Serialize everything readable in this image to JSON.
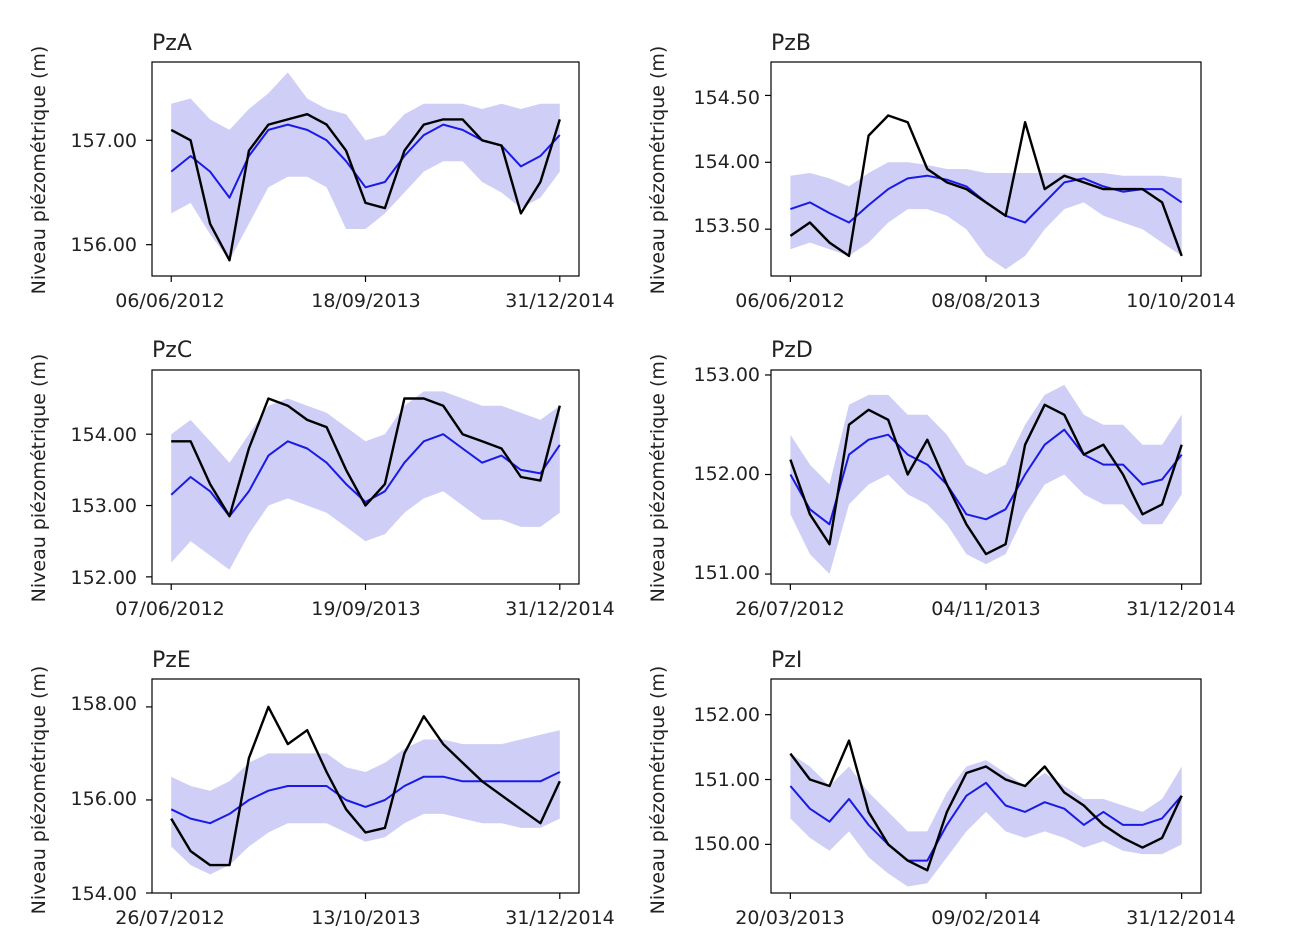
{
  "chart_data": [
    {
      "type": "line",
      "title": "PzA",
      "ylabel": "Niveau piézométrique (m)",
      "ylim": [
        155.7,
        157.75
      ],
      "yticks": [
        "156.00",
        "157.00"
      ],
      "xticks": [
        "06/06/2012",
        "18/09/2013",
        "31/12/2014"
      ],
      "x": [
        0,
        0.05,
        0.1,
        0.15,
        0.2,
        0.25,
        0.3,
        0.35,
        0.4,
        0.45,
        0.5,
        0.55,
        0.6,
        0.65,
        0.7,
        0.75,
        0.8,
        0.85,
        0.9,
        0.95,
        1.0
      ],
      "series": [
        {
          "role": "observed",
          "color": "#000000",
          "values": [
            157.1,
            157.0,
            156.2,
            155.85,
            156.9,
            157.15,
            157.2,
            157.25,
            157.15,
            156.9,
            156.4,
            156.35,
            156.9,
            157.15,
            157.2,
            157.2,
            157.0,
            156.95,
            156.3,
            156.6,
            157.2
          ]
        },
        {
          "role": "mean",
          "color": "#1a1ae6",
          "values": [
            156.7,
            156.85,
            156.7,
            156.45,
            156.85,
            157.1,
            157.15,
            157.1,
            157.0,
            156.8,
            156.55,
            156.6,
            156.85,
            157.05,
            157.15,
            157.1,
            157.0,
            156.95,
            156.75,
            156.85,
            157.05
          ]
        },
        {
          "role": "upper",
          "color": "#c5c5f5",
          "values": [
            157.35,
            157.4,
            157.2,
            157.1,
            157.3,
            157.45,
            157.65,
            157.4,
            157.3,
            157.25,
            157.0,
            157.05,
            157.25,
            157.35,
            157.35,
            157.35,
            157.3,
            157.35,
            157.3,
            157.35,
            157.35
          ]
        },
        {
          "role": "lower",
          "color": "#c5c5f5",
          "values": [
            156.3,
            156.4,
            156.1,
            155.85,
            156.2,
            156.55,
            156.65,
            156.65,
            156.55,
            156.15,
            156.15,
            156.3,
            156.5,
            156.7,
            156.8,
            156.8,
            156.6,
            156.5,
            156.35,
            156.45,
            156.7
          ]
        }
      ]
    },
    {
      "type": "line",
      "title": "PzB",
      "ylabel": "Niveau piézométrique (m)",
      "ylim": [
        153.15,
        154.75
      ],
      "yticks": [
        "153.50",
        "154.00",
        "154.50"
      ],
      "xticks": [
        "06/06/2012",
        "08/08/2013",
        "10/10/2014"
      ],
      "x": [
        0,
        0.05,
        0.1,
        0.15,
        0.2,
        0.25,
        0.3,
        0.35,
        0.4,
        0.45,
        0.5,
        0.55,
        0.6,
        0.65,
        0.7,
        0.75,
        0.8,
        0.85,
        0.9,
        0.95,
        1.0
      ],
      "series": [
        {
          "role": "observed",
          "color": "#000000",
          "values": [
            153.45,
            153.55,
            153.4,
            153.3,
            154.2,
            154.35,
            154.3,
            153.95,
            153.85,
            153.8,
            153.7,
            153.6,
            154.3,
            153.8,
            153.9,
            153.85,
            153.8,
            153.8,
            153.8,
            153.7,
            153.3
          ]
        },
        {
          "role": "mean",
          "color": "#1a1ae6",
          "values": [
            153.65,
            153.7,
            153.62,
            153.55,
            153.68,
            153.8,
            153.88,
            153.9,
            153.87,
            153.82,
            153.7,
            153.6,
            153.55,
            153.7,
            153.85,
            153.88,
            153.82,
            153.78,
            153.8,
            153.8,
            153.7
          ]
        },
        {
          "role": "upper",
          "color": "#c5c5f5",
          "values": [
            153.9,
            153.92,
            153.88,
            153.82,
            153.92,
            154.0,
            154.0,
            153.98,
            153.95,
            153.95,
            153.92,
            153.92,
            153.92,
            153.92,
            153.92,
            153.92,
            153.92,
            153.9,
            153.9,
            153.9,
            153.88
          ]
        },
        {
          "role": "lower",
          "color": "#c5c5f5",
          "values": [
            153.35,
            153.4,
            153.35,
            153.3,
            153.4,
            153.55,
            153.65,
            153.65,
            153.6,
            153.5,
            153.3,
            153.2,
            153.3,
            153.5,
            153.65,
            153.7,
            153.6,
            153.55,
            153.5,
            153.4,
            153.3
          ]
        }
      ]
    },
    {
      "type": "line",
      "title": "PzC",
      "ylabel": "Niveau piézométrique (m)",
      "ylim": [
        151.9,
        154.9
      ],
      "yticks": [
        "152.00",
        "153.00",
        "154.00"
      ],
      "xticks": [
        "07/06/2012",
        "19/09/2013",
        "31/12/2014"
      ],
      "x": [
        0,
        0.05,
        0.1,
        0.15,
        0.2,
        0.25,
        0.3,
        0.35,
        0.4,
        0.45,
        0.5,
        0.55,
        0.6,
        0.65,
        0.7,
        0.75,
        0.8,
        0.85,
        0.9,
        0.95,
        1.0
      ],
      "series": [
        {
          "role": "observed",
          "color": "#000000",
          "values": [
            153.9,
            153.9,
            153.3,
            152.85,
            153.8,
            154.5,
            154.4,
            154.2,
            154.1,
            153.5,
            153.0,
            153.3,
            154.5,
            154.5,
            154.4,
            154.0,
            153.9,
            153.8,
            153.4,
            153.35,
            154.4
          ]
        },
        {
          "role": "mean",
          "color": "#1a1ae6",
          "values": [
            153.15,
            153.4,
            153.2,
            152.85,
            153.2,
            153.7,
            153.9,
            153.8,
            153.6,
            153.3,
            153.05,
            153.2,
            153.6,
            153.9,
            154.0,
            153.8,
            153.6,
            153.7,
            153.5,
            153.45,
            153.85
          ]
        },
        {
          "role": "upper",
          "color": "#c5c5f5",
          "values": [
            154.0,
            154.2,
            153.9,
            153.6,
            154.0,
            154.4,
            154.5,
            154.4,
            154.3,
            154.1,
            153.9,
            154.0,
            154.4,
            154.6,
            154.6,
            154.5,
            154.4,
            154.4,
            154.3,
            154.2,
            154.4
          ]
        },
        {
          "role": "lower",
          "color": "#c5c5f5",
          "values": [
            152.2,
            152.5,
            152.3,
            152.1,
            152.6,
            153.0,
            153.1,
            153.0,
            152.9,
            152.7,
            152.5,
            152.6,
            152.9,
            153.1,
            153.2,
            153.0,
            152.8,
            152.8,
            152.7,
            152.7,
            152.9
          ]
        }
      ]
    },
    {
      "type": "line",
      "title": "PzD",
      "ylabel": "Niveau piézométrique (m)",
      "ylim": [
        150.9,
        153.05
      ],
      "yticks": [
        "151.00",
        "152.00",
        "153.00"
      ],
      "xticks": [
        "26/07/2012",
        "04/11/2013",
        "31/12/2014"
      ],
      "x": [
        0,
        0.05,
        0.1,
        0.15,
        0.2,
        0.25,
        0.3,
        0.35,
        0.4,
        0.45,
        0.5,
        0.55,
        0.6,
        0.65,
        0.7,
        0.75,
        0.8,
        0.85,
        0.9,
        0.95,
        1.0
      ],
      "series": [
        {
          "role": "observed",
          "color": "#000000",
          "values": [
            152.15,
            151.6,
            151.3,
            152.5,
            152.65,
            152.55,
            152.0,
            152.35,
            151.9,
            151.5,
            151.2,
            151.3,
            152.3,
            152.7,
            152.6,
            152.2,
            152.3,
            152.0,
            151.6,
            151.7,
            152.3
          ]
        },
        {
          "role": "mean",
          "color": "#1a1ae6",
          "values": [
            152.0,
            151.65,
            151.5,
            152.2,
            152.35,
            152.4,
            152.2,
            152.1,
            151.9,
            151.6,
            151.55,
            151.65,
            152.0,
            152.3,
            152.45,
            152.2,
            152.1,
            152.1,
            151.9,
            151.95,
            152.2
          ]
        },
        {
          "role": "upper",
          "color": "#c5c5f5",
          "values": [
            152.4,
            152.1,
            151.9,
            152.7,
            152.8,
            152.8,
            152.6,
            152.6,
            152.4,
            152.1,
            152.0,
            152.1,
            152.5,
            152.8,
            152.9,
            152.6,
            152.5,
            152.5,
            152.3,
            152.3,
            152.6
          ]
        },
        {
          "role": "lower",
          "color": "#c5c5f5",
          "values": [
            151.6,
            151.2,
            151.0,
            151.7,
            151.9,
            152.0,
            151.8,
            151.7,
            151.5,
            151.2,
            151.1,
            151.2,
            151.6,
            151.9,
            152.0,
            151.8,
            151.7,
            151.7,
            151.5,
            151.5,
            151.8
          ]
        }
      ]
    },
    {
      "type": "line",
      "title": "PzE",
      "ylabel": "Niveau piézométrique (m)",
      "ylim": [
        154.0,
        158.6
      ],
      "yticks": [
        "154.00",
        "156.00",
        "158.00"
      ],
      "xticks": [
        "26/07/2012",
        "13/10/2013",
        "31/12/2014"
      ],
      "x": [
        0,
        0.05,
        0.1,
        0.15,
        0.2,
        0.25,
        0.3,
        0.35,
        0.4,
        0.45,
        0.5,
        0.55,
        0.6,
        0.65,
        0.7,
        0.75,
        0.8,
        0.85,
        0.9,
        0.95,
        1.0
      ],
      "series": [
        {
          "role": "observed",
          "color": "#000000",
          "values": [
            155.6,
            154.9,
            154.6,
            154.6,
            156.9,
            158.0,
            157.2,
            157.5,
            156.6,
            155.8,
            155.3,
            155.4,
            157.0,
            157.8,
            157.2,
            156.8,
            156.4,
            156.1,
            155.8,
            155.5,
            156.4
          ]
        },
        {
          "role": "mean",
          "color": "#1a1ae6",
          "values": [
            155.8,
            155.6,
            155.5,
            155.7,
            156.0,
            156.2,
            156.3,
            156.3,
            156.3,
            156.0,
            155.85,
            156.0,
            156.3,
            156.5,
            156.5,
            156.4,
            156.4,
            156.4,
            156.4,
            156.4,
            156.6
          ]
        },
        {
          "role": "upper",
          "color": "#c5c5f5",
          "values": [
            156.5,
            156.3,
            156.2,
            156.4,
            156.8,
            157.0,
            157.0,
            157.0,
            157.0,
            156.7,
            156.6,
            156.8,
            157.1,
            157.3,
            157.3,
            157.2,
            157.2,
            157.2,
            157.3,
            157.4,
            157.5
          ]
        },
        {
          "role": "lower",
          "color": "#c5c5f5",
          "values": [
            155.0,
            154.6,
            154.4,
            154.6,
            155.0,
            155.3,
            155.5,
            155.5,
            155.5,
            155.3,
            155.1,
            155.2,
            155.5,
            155.7,
            155.7,
            155.6,
            155.5,
            155.5,
            155.4,
            155.4,
            155.6
          ]
        }
      ]
    },
    {
      "type": "line",
      "title": "PzI",
      "ylabel": "Niveau piézométrique (m)",
      "ylim": [
        149.25,
        152.55
      ],
      "yticks": [
        "150.00",
        "151.00",
        "152.00"
      ],
      "xticks": [
        "20/03/2013",
        "09/02/2014",
        "31/12/2014"
      ],
      "x": [
        0,
        0.05,
        0.1,
        0.15,
        0.2,
        0.25,
        0.3,
        0.35,
        0.4,
        0.45,
        0.5,
        0.55,
        0.6,
        0.65,
        0.7,
        0.75,
        0.8,
        0.85,
        0.9,
        0.95,
        1.0
      ],
      "series": [
        {
          "role": "observed",
          "color": "#000000",
          "values": [
            151.4,
            151.0,
            150.9,
            151.6,
            150.5,
            150.0,
            149.75,
            149.6,
            150.5,
            151.1,
            151.2,
            151.0,
            150.9,
            151.2,
            150.8,
            150.6,
            150.3,
            150.1,
            149.95,
            150.1,
            150.75
          ]
        },
        {
          "role": "mean",
          "color": "#1a1ae6",
          "values": [
            150.9,
            150.55,
            150.35,
            150.7,
            150.3,
            150.0,
            149.75,
            149.75,
            150.3,
            150.75,
            150.95,
            150.6,
            150.5,
            150.65,
            150.55,
            150.3,
            150.5,
            150.3,
            150.3,
            150.4,
            150.75
          ]
        },
        {
          "role": "upper",
          "color": "#c5c5f5",
          "values": [
            151.4,
            151.2,
            150.9,
            151.2,
            150.8,
            150.5,
            150.2,
            150.2,
            150.8,
            151.2,
            151.3,
            151.1,
            150.9,
            151.1,
            150.9,
            150.7,
            150.7,
            150.6,
            150.5,
            150.7,
            151.2
          ]
        },
        {
          "role": "lower",
          "color": "#c5c5f5",
          "values": [
            150.4,
            150.1,
            149.9,
            150.2,
            149.8,
            149.55,
            149.35,
            149.4,
            149.8,
            150.2,
            150.5,
            150.2,
            150.1,
            150.2,
            150.1,
            149.95,
            150.05,
            149.9,
            149.85,
            149.85,
            150.0
          ]
        }
      ]
    }
  ]
}
